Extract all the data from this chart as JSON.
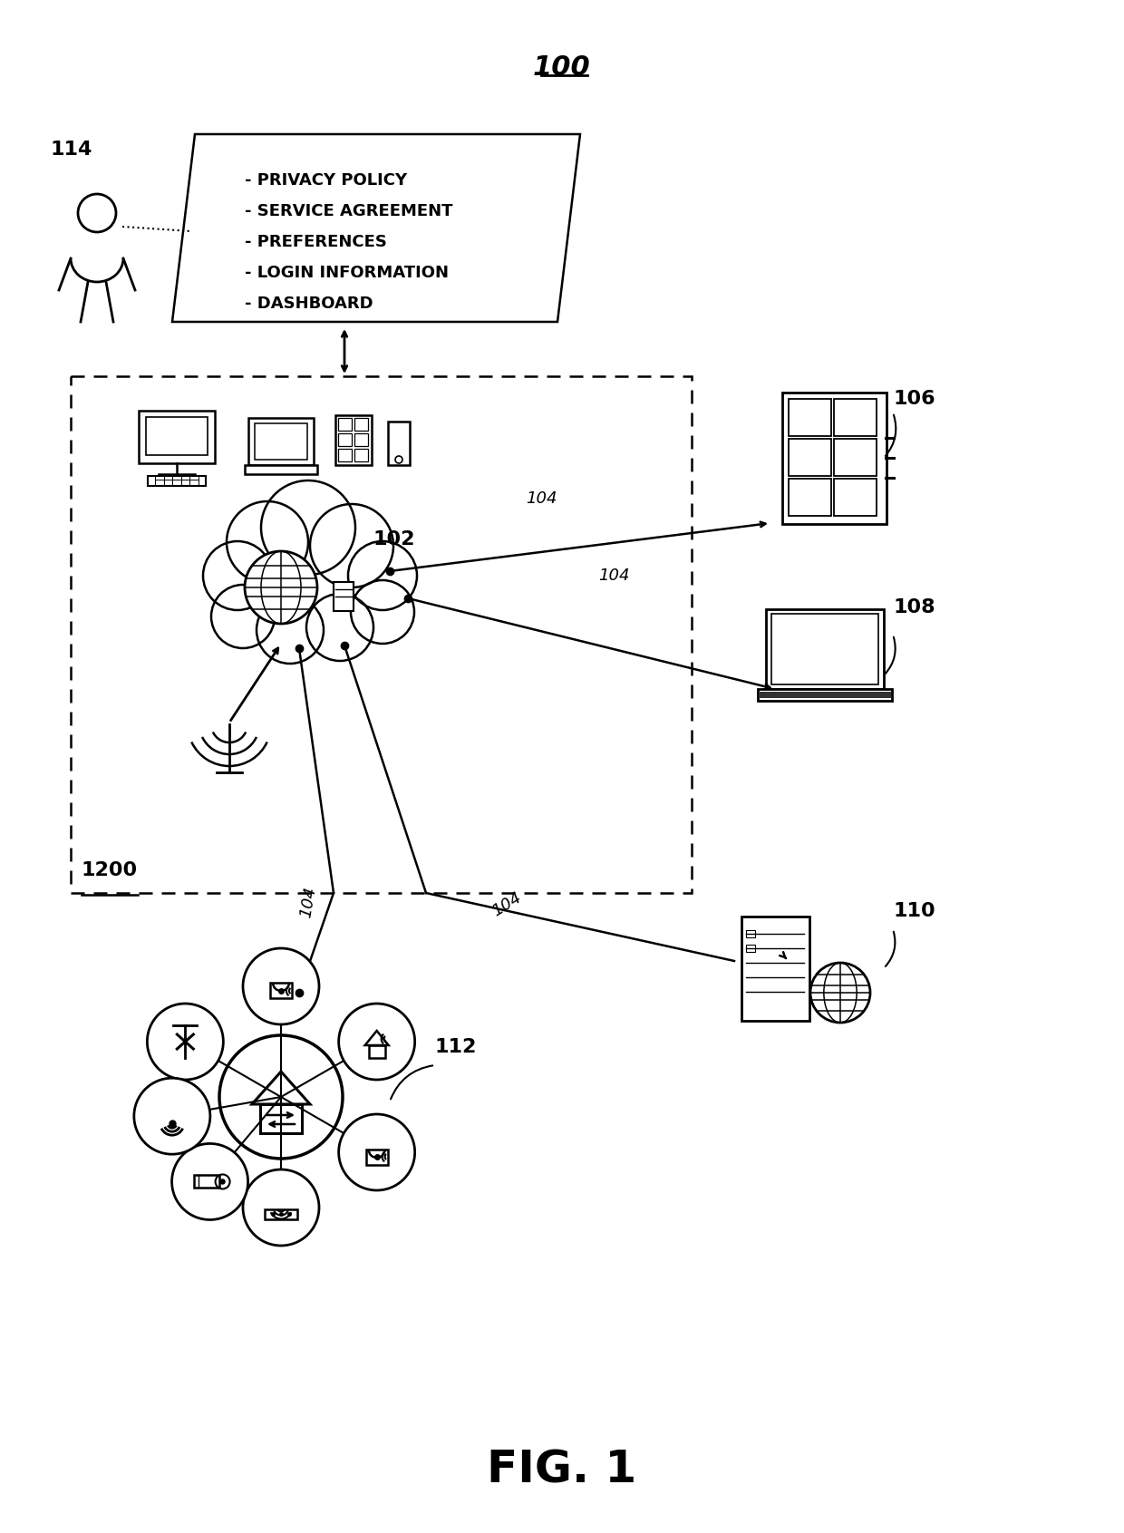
{
  "background_color": "#ffffff",
  "line_color": "#000000",
  "text_color": "#000000",
  "document_items": [
    "- PRIVACY POLICY",
    "- SERVICE AGREEMENT",
    "- PREFERENCES",
    "- LOGIN INFORMATION",
    "- DASHBOARD"
  ],
  "labels": {
    "main": "100",
    "cloud": "102",
    "connections": "104",
    "tablet_label": "106",
    "laptop_label": "108",
    "server_label": "110",
    "iot_hub": "112",
    "user": "114",
    "system_box": "1200"
  },
  "fig_label": "FIG. 1"
}
